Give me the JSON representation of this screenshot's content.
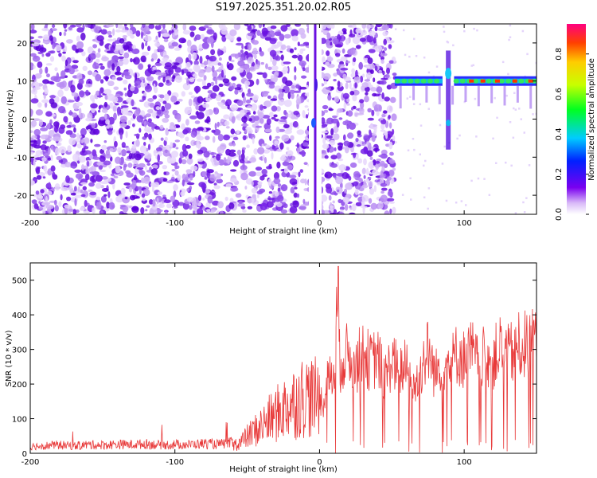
{
  "title": "S197.2025.351.20.02.R05",
  "chart_data": [
    {
      "type": "heatmap",
      "name": "spectrogram",
      "xlabel": "Height of straight line (km)",
      "ylabel": "Frequency (Hz)",
      "xlim": [
        -200,
        150
      ],
      "ylim": [
        -25,
        25
      ],
      "xticks": [
        -200,
        -100,
        0,
        100
      ],
      "yticks": [
        -20,
        -10,
        0,
        10,
        20
      ],
      "colorbar": {
        "label": "Normalized spectral amplitude",
        "range": [
          0.0,
          0.95
        ],
        "ticks": [
          0.0,
          0.2,
          0.4,
          0.6,
          0.8
        ]
      },
      "features": {
        "noise_region": [
          -200,
          52
        ],
        "vertical_line_x": -3,
        "tone_frequency_hz": 10,
        "tone_start_x": 52,
        "tone_gap": [
          85,
          93
        ],
        "peak_markers_x": [
          105,
          113,
          123,
          135,
          146
        ]
      }
    },
    {
      "type": "line",
      "name": "snr",
      "xlabel": "Height of straight line (km)",
      "ylabel": "SNR (10 * v/v)",
      "xlim": [
        -200,
        150
      ],
      "ylim": [
        0,
        550
      ],
      "xticks": [
        -200,
        -100,
        0,
        100
      ],
      "yticks": [
        0,
        100,
        200,
        300,
        400,
        500
      ],
      "series_color": "#e83a3a",
      "series": [
        {
          "name": "SNR",
          "x": [
            -200,
            -190,
            -180,
            -170,
            -160,
            -150,
            -140,
            -130,
            -120,
            -110,
            -100,
            -90,
            -80,
            -70,
            -60,
            -55,
            -50,
            -45,
            -40,
            -35,
            -30,
            -25,
            -20,
            -15,
            -10,
            -5,
            0,
            2,
            5,
            10,
            13,
            14,
            15,
            20,
            25,
            30,
            35,
            40,
            45,
            50,
            55,
            60,
            65,
            70,
            75,
            80,
            85,
            90,
            95,
            100,
            105,
            110,
            115,
            120,
            125,
            130,
            135,
            140,
            145,
            150
          ],
          "y": [
            20,
            22,
            24,
            21,
            25,
            24,
            26,
            25,
            27,
            24,
            26,
            25,
            28,
            26,
            30,
            40,
            60,
            80,
            100,
            120,
            140,
            160,
            180,
            190,
            210,
            200,
            200,
            150,
            230,
            250,
            540,
            260,
            300,
            320,
            280,
            330,
            290,
            310,
            240,
            300,
            260,
            280,
            200,
            270,
            330,
            250,
            300,
            280,
            320,
            300,
            330,
            280,
            320,
            300,
            340,
            310,
            330,
            350,
            340,
            360
          ]
        }
      ]
    }
  ]
}
